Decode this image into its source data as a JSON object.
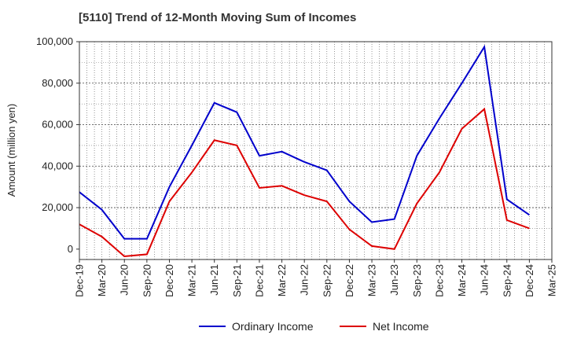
{
  "chart_data": {
    "type": "line",
    "title": "[5110]  Trend of 12-Month Moving Sum of Incomes",
    "ylabel": "Amount (million yen)",
    "xlabel": "",
    "ylim": [
      -5000,
      100000
    ],
    "yticks": [
      0,
      20000,
      40000,
      60000,
      80000,
      100000
    ],
    "ytick_labels": [
      "0",
      "20,000",
      "40,000",
      "60,000",
      "80,000",
      "100,000"
    ],
    "categories": [
      "Dec-19",
      "Mar-20",
      "Jun-20",
      "Sep-20",
      "Dec-20",
      "Mar-21",
      "Jun-21",
      "Sep-21",
      "Dec-21",
      "Mar-22",
      "Jun-22",
      "Sep-22",
      "Dec-22",
      "Mar-23",
      "Jun-23",
      "Sep-23",
      "Dec-23",
      "Mar-24",
      "Jun-24",
      "Sep-24",
      "Dec-24",
      "Mar-25"
    ],
    "grid": true,
    "legend_position": "bottom-center",
    "series": [
      {
        "name": "Ordinary Income",
        "color": "#0000cc",
        "values": [
          27500,
          19000,
          5000,
          5000,
          30000,
          50000,
          70500,
          66000,
          45000,
          47000,
          42000,
          38000,
          23000,
          13000,
          14500,
          45000,
          63000,
          80000,
          97500,
          24000,
          16500,
          null
        ]
      },
      {
        "name": "Net Income",
        "color": "#dd0000",
        "values": [
          12000,
          6000,
          -3500,
          -2500,
          23000,
          37000,
          52500,
          50000,
          29500,
          30500,
          26000,
          23000,
          9500,
          1500,
          0,
          22000,
          37000,
          58000,
          67500,
          14000,
          10000,
          null
        ]
      }
    ]
  }
}
